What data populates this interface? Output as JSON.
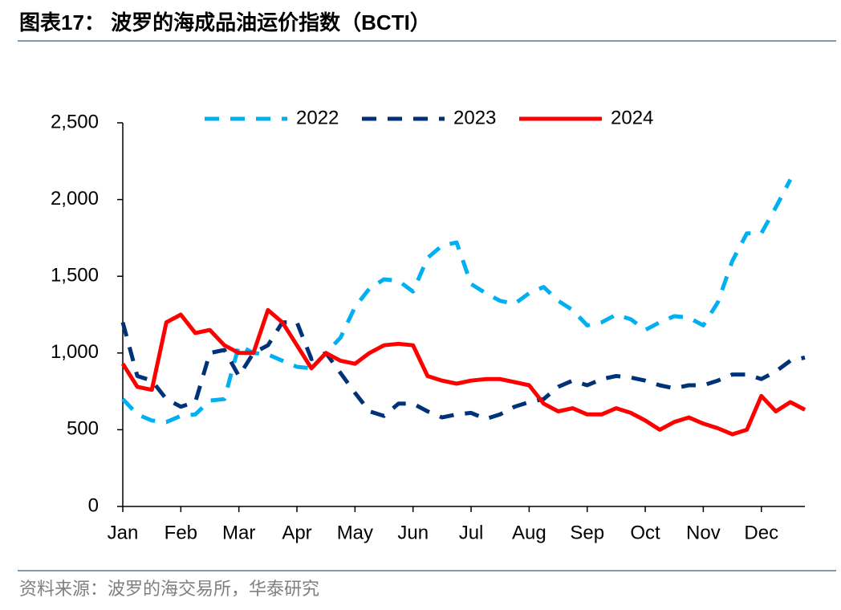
{
  "chart_data": {
    "type": "line",
    "title": "图表17：  波罗的海成品油运价指数（BCTI）",
    "source": "资料来源：波罗的海交易所，华泰研究",
    "categories": [
      "Jan",
      null,
      null,
      null,
      "Feb",
      null,
      null,
      null,
      "Mar",
      null,
      null,
      null,
      "Apr",
      null,
      null,
      null,
      "May",
      null,
      null,
      null,
      "Jun",
      null,
      null,
      null,
      "Jul",
      null,
      null,
      null,
      "Aug",
      null,
      null,
      null,
      "Sep",
      null,
      null,
      null,
      "Oct",
      null,
      null,
      null,
      "Nov",
      null,
      null,
      null,
      "Dec",
      null,
      null,
      null
    ],
    "series": [
      {
        "name": "2022",
        "color": "#00b0f0",
        "style": "dashed",
        "values": [
          700,
          600,
          560,
          550,
          590,
          600,
          690,
          700,
          1050,
          1000,
          990,
          950,
          910,
          900,
          1000,
          1100,
          1300,
          1420,
          1480,
          1470,
          1400,
          1620,
          1700,
          1720,
          1450,
          1390,
          1340,
          1320,
          1390,
          1430,
          1340,
          1280,
          1180,
          1200,
          1250,
          1220,
          1150,
          1200,
          1240,
          1230,
          1180,
          1330,
          1600,
          1780,
          1780,
          1950,
          2130,
          null
        ]
      },
      {
        "name": "2023",
        "color": "#003278",
        "style": "dashed",
        "values": [
          1200,
          850,
          820,
          700,
          650,
          680,
          1000,
          1020,
          850,
          1000,
          1050,
          1200,
          1200,
          960,
          1000,
          870,
          740,
          620,
          590,
          670,
          670,
          620,
          580,
          600,
          610,
          570,
          600,
          650,
          680,
          700,
          780,
          820,
          790,
          830,
          850,
          840,
          820,
          790,
          770,
          790,
          790,
          820,
          860,
          860,
          830,
          880,
          950,
          970
        ]
      },
      {
        "name": "2024",
        "color": "#ff0000",
        "style": "solid",
        "values": [
          930,
          780,
          760,
          1200,
          1250,
          1130,
          1150,
          1050,
          1000,
          1000,
          1280,
          1200,
          1050,
          900,
          1000,
          950,
          930,
          1000,
          1050,
          1060,
          1050,
          850,
          820,
          800,
          820,
          830,
          830,
          810,
          790,
          670,
          620,
          640,
          600,
          600,
          640,
          610,
          560,
          500,
          550,
          580,
          540,
          510,
          470,
          500,
          720,
          620,
          680,
          630
        ]
      }
    ],
    "ylim": [
      0,
      2500
    ],
    "yticks": [
      0,
      500,
      {
        "value": 1000,
        "label": "1,000"
      },
      {
        "value": 1500,
        "label": "1,500"
      },
      {
        "value": 2000,
        "label": "2,000"
      },
      {
        "value": 2500,
        "label": "2,500"
      }
    ],
    "grid": false,
    "legend": "top"
  }
}
